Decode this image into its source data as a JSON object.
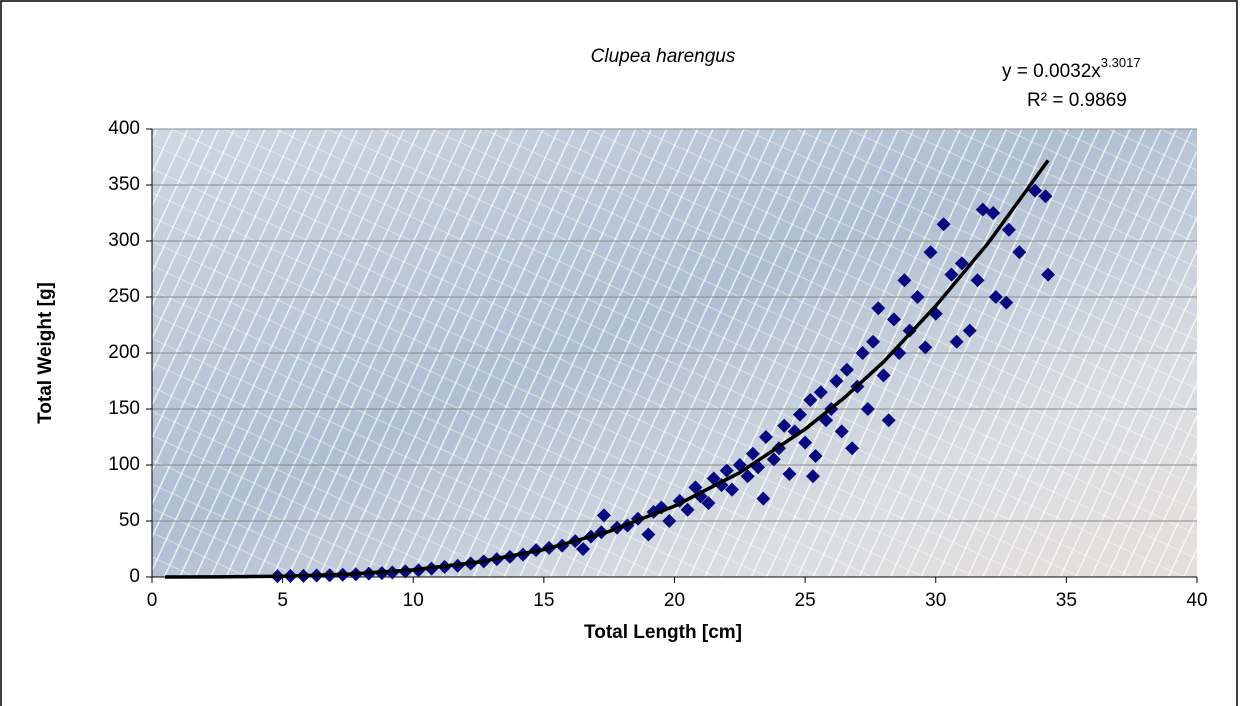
{
  "chart_data": {
    "type": "scatter",
    "title": "Clupea harengus",
    "x_label": "Total Length [cm]",
    "y_label": "Total Weight [g]",
    "xlim": [
      0,
      40
    ],
    "ylim": [
      0,
      400
    ],
    "xticks": [
      0,
      5,
      10,
      15,
      20,
      25,
      30,
      35,
      40
    ],
    "yticks": [
      0,
      50,
      100,
      150,
      200,
      250,
      300,
      350,
      400
    ],
    "grid": true,
    "series": [
      {
        "color": "#0a0a80",
        "x": [
          4.8,
          5.3,
          5.8,
          6.3,
          6.8,
          7.3,
          7.8,
          8.3,
          8.8,
          9.2,
          9.7,
          10.2,
          10.7,
          11.2,
          11.7,
          12.2,
          12.7,
          13.2,
          13.7,
          14.2,
          14.7,
          15.2,
          15.7,
          16.2,
          16.5,
          16.8,
          17.2,
          17.3,
          17.8,
          18.2,
          18.6,
          19,
          19.2,
          19.5,
          19.8,
          20.2,
          20.5,
          20.8,
          21,
          21.3,
          21.5,
          21.8,
          22,
          22.2,
          22.5,
          22.8,
          23,
          23.2,
          23.4,
          23.5,
          23.8,
          24,
          24.2,
          24.4,
          24.6,
          24.8,
          25,
          25.2,
          25.4,
          25.3,
          25.6,
          25.8,
          26,
          26.2,
          26.4,
          26.6,
          26.8,
          27,
          27.2,
          27.4,
          27.6,
          27.8,
          28,
          28.2,
          28.4,
          28.6,
          28.8,
          29,
          29.3,
          29.6,
          29.8,
          30,
          30.3,
          30.6,
          30.8,
          31,
          31.3,
          31.6,
          31.8,
          32.2,
          32.3,
          32.7,
          32.8,
          33.2,
          33.8,
          34.2,
          34.3
        ],
        "values": [
          0.7,
          0.9,
          1,
          1.3,
          1.6,
          2,
          2.5,
          3,
          3.5,
          4,
          5,
          6,
          7.5,
          9,
          10,
          12,
          14,
          16,
          18,
          20,
          24,
          26,
          28,
          32,
          25,
          36,
          40,
          55,
          44,
          46,
          52,
          38,
          58,
          62,
          50,
          68,
          60,
          80,
          72,
          66,
          88,
          82,
          95,
          78,
          100,
          90,
          110,
          98,
          70,
          125,
          105,
          115,
          135,
          92,
          130,
          145,
          120,
          158,
          108,
          90,
          165,
          140,
          150,
          175,
          130,
          185,
          115,
          170,
          200,
          150,
          210,
          240,
          180,
          140,
          230,
          200,
          265,
          220,
          250,
          205,
          290,
          235,
          315,
          270,
          210,
          280,
          220,
          265,
          328,
          325,
          250,
          245,
          310,
          290,
          345,
          340,
          270
        ]
      }
    ],
    "trendline": {
      "color": "#000000",
      "equation": "y = 0.0032x",
      "exponent": "3.3017",
      "r_squared": "R² = 0.9869",
      "x": [
        0.5,
        2.5,
        5,
        7.5,
        10,
        12.5,
        15,
        17.5,
        20,
        22.5,
        25,
        26.5,
        28,
        30,
        32,
        33,
        34.3
      ],
      "values": [
        0,
        0.07,
        0.65,
        2.5,
        6.4,
        13.4,
        24.5,
        40.7,
        63.3,
        93.2,
        132,
        160,
        192,
        242,
        298,
        330,
        372
      ]
    }
  }
}
